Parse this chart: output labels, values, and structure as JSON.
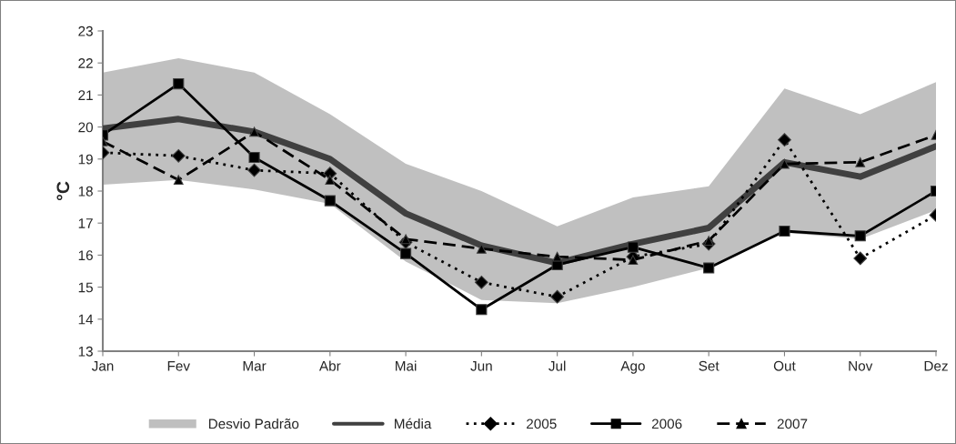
{
  "chart_data": {
    "type": "line",
    "ylabel": "°C",
    "categories": [
      "Jan",
      "Fev",
      "Mar",
      "Abr",
      "Mai",
      "Jun",
      "Jul",
      "Ago",
      "Set",
      "Out",
      "Nov",
      "Dez"
    ],
    "ylim": [
      13,
      23
    ],
    "yticks": [
      13,
      14,
      15,
      16,
      17,
      18,
      19,
      20,
      21,
      22,
      23
    ],
    "grid": false,
    "legend": "bottom",
    "annotations": [
      "Desvio Padrão"
    ],
    "series": [
      {
        "name": "Média",
        "color": "#404040",
        "marker": "none",
        "line_style": "solid",
        "values": [
          19.95,
          20.25,
          19.85,
          19.0,
          17.3,
          16.3,
          15.75,
          16.35,
          16.85,
          18.9,
          18.45,
          19.4
        ],
        "lower": [
          18.2,
          18.35,
          18.05,
          17.6,
          15.8,
          14.6,
          14.5,
          15.0,
          15.6,
          16.7,
          16.5,
          17.4
        ],
        "upper": [
          21.7,
          22.15,
          21.7,
          20.4,
          18.85,
          18.0,
          16.9,
          17.8,
          18.15,
          21.2,
          20.4,
          21.4
        ]
      },
      {
        "name": "2005",
        "color": "#000000",
        "marker": "diamond",
        "line_style": "dotted",
        "values": [
          19.2,
          19.1,
          18.65,
          18.55,
          16.4,
          15.15,
          14.7,
          15.95,
          16.35,
          19.6,
          15.9,
          17.25
        ]
      },
      {
        "name": "2006",
        "color": "#000000",
        "marker": "square",
        "line_style": "solid",
        "values": [
          19.75,
          21.35,
          19.05,
          17.7,
          16.05,
          14.3,
          15.7,
          16.25,
          15.6,
          16.75,
          16.6,
          18.0
        ]
      },
      {
        "name": "2007",
        "color": "#000000",
        "marker": "triangle",
        "line_style": "dashed",
        "values": [
          19.55,
          18.35,
          19.85,
          18.35,
          16.5,
          16.2,
          15.95,
          15.85,
          16.45,
          18.85,
          18.9,
          19.75
        ]
      }
    ]
  }
}
